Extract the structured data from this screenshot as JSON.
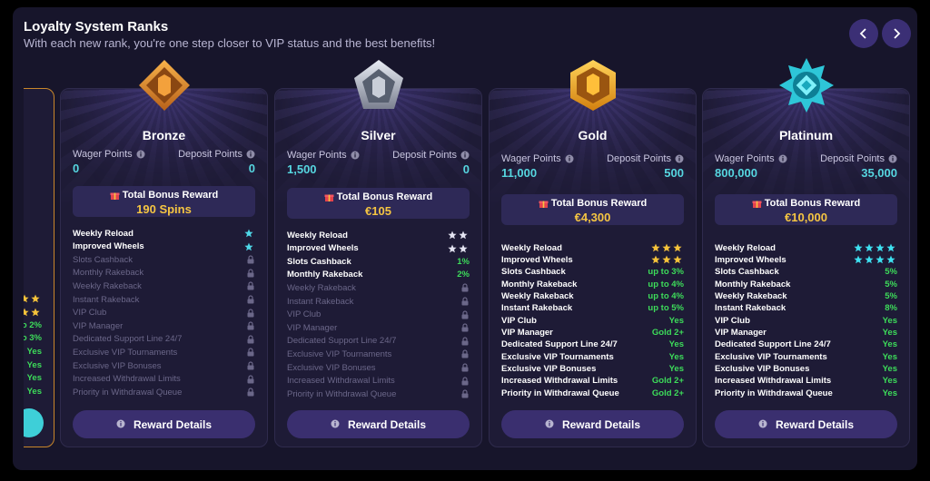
{
  "header": {
    "title": "Loyalty System Ranks",
    "subtitle": "With each new rank, you're one step closer to VIP status and the best benefits!"
  },
  "labels": {
    "wager": "Wager Points",
    "deposit": "Deposit Points",
    "reward": "Total Bonus Reward",
    "details": "Reward Details"
  },
  "partial_card": {
    "star_color": "#f5c33a",
    "rows": [
      {
        "stars": 2
      },
      {
        "stars": 2
      },
      {
        "value": "o 2%"
      },
      {
        "value": "o 3%"
      },
      {
        "value": "Yes"
      },
      {
        "value": "Yes"
      },
      {
        "value": "Yes"
      },
      {
        "value": "Yes"
      }
    ]
  },
  "ranks": [
    {
      "name": "Bronze",
      "star_color": "#4fd8e8",
      "wager": "0",
      "deposit": "0",
      "reward": "190 Spins",
      "rows": [
        {
          "label": "Weekly Reload",
          "stars": 1
        },
        {
          "label": "Improved Wheels",
          "stars": 1
        },
        {
          "label": "Slots Cashback",
          "locked": true
        },
        {
          "label": "Monthly Rakeback",
          "locked": true
        },
        {
          "label": "Weekly Rakeback",
          "locked": true
        },
        {
          "label": "Instant Rakeback",
          "locked": true
        },
        {
          "label": "VIP Club",
          "locked": true
        },
        {
          "label": "VIP Manager",
          "locked": true
        },
        {
          "label": "Dedicated Support Line 24/7",
          "locked": true
        },
        {
          "label": "Exclusive VIP Tournaments",
          "locked": true
        },
        {
          "label": "Exclusive VIP Bonuses",
          "locked": true
        },
        {
          "label": "Increased Withdrawal Limits",
          "locked": true
        },
        {
          "label": "Priority in Withdrawal Queue",
          "locked": true
        }
      ]
    },
    {
      "name": "Silver",
      "star_color": "#e4e4f2",
      "wager": "1,500",
      "deposit": "0",
      "reward": "€105",
      "rows": [
        {
          "label": "Weekly Reload",
          "stars": 2
        },
        {
          "label": "Improved Wheels",
          "stars": 2
        },
        {
          "label": "Slots Cashback",
          "value": "1%"
        },
        {
          "label": "Monthly Rakeback",
          "value": "2%"
        },
        {
          "label": "Weekly Rakeback",
          "locked": true
        },
        {
          "label": "Instant Rakeback",
          "locked": true
        },
        {
          "label": "VIP Club",
          "locked": true
        },
        {
          "label": "VIP Manager",
          "locked": true
        },
        {
          "label": "Dedicated Support Line 24/7",
          "locked": true
        },
        {
          "label": "Exclusive VIP Tournaments",
          "locked": true
        },
        {
          "label": "Exclusive VIP Bonuses",
          "locked": true
        },
        {
          "label": "Increased Withdrawal Limits",
          "locked": true
        },
        {
          "label": "Priority in Withdrawal Queue",
          "locked": true
        }
      ]
    },
    {
      "name": "Gold",
      "star_color": "#f5c33a",
      "wager": "11,000",
      "deposit": "500",
      "reward": "€4,300",
      "rows": [
        {
          "label": "Weekly Reload",
          "stars": 3
        },
        {
          "label": "Improved Wheels",
          "stars": 3
        },
        {
          "label": "Slots Cashback",
          "value": "up to 3%"
        },
        {
          "label": "Monthly Rakeback",
          "value": "up to 4%"
        },
        {
          "label": "Weekly Rakeback",
          "value": "up to 4%"
        },
        {
          "label": "Instant Rakeback",
          "value": "up to 5%"
        },
        {
          "label": "VIP Club",
          "value": "Yes"
        },
        {
          "label": "VIP Manager",
          "value": "Gold 2+"
        },
        {
          "label": "Dedicated Support Line 24/7",
          "value": "Yes"
        },
        {
          "label": "Exclusive VIP Tournaments",
          "value": "Yes"
        },
        {
          "label": "Exclusive VIP Bonuses",
          "value": "Yes"
        },
        {
          "label": "Increased Withdrawal Limits",
          "value": "Gold 2+"
        },
        {
          "label": "Priority in Withdrawal Queue",
          "value": "Gold 2+"
        }
      ]
    },
    {
      "name": "Platinum",
      "star_color": "#3ee0f0",
      "wager": "800,000",
      "deposit": "35,000",
      "reward": "€10,000",
      "rows": [
        {
          "label": "Weekly Reload",
          "stars": 4
        },
        {
          "label": "Improved Wheels",
          "stars": 4
        },
        {
          "label": "Slots Cashback",
          "value": "5%"
        },
        {
          "label": "Monthly Rakeback",
          "value": "5%"
        },
        {
          "label": "Weekly Rakeback",
          "value": "5%"
        },
        {
          "label": "Instant Rakeback",
          "value": "8%"
        },
        {
          "label": "VIP Club",
          "value": "Yes"
        },
        {
          "label": "VIP Manager",
          "value": "Yes"
        },
        {
          "label": "Dedicated Support Line 24/7",
          "value": "Yes"
        },
        {
          "label": "Exclusive VIP Tournaments",
          "value": "Yes"
        },
        {
          "label": "Exclusive VIP Bonuses",
          "value": "Yes"
        },
        {
          "label": "Increased Withdrawal Limits",
          "value": "Yes"
        },
        {
          "label": "Priority in Withdrawal Queue",
          "value": "Yes"
        }
      ]
    }
  ]
}
